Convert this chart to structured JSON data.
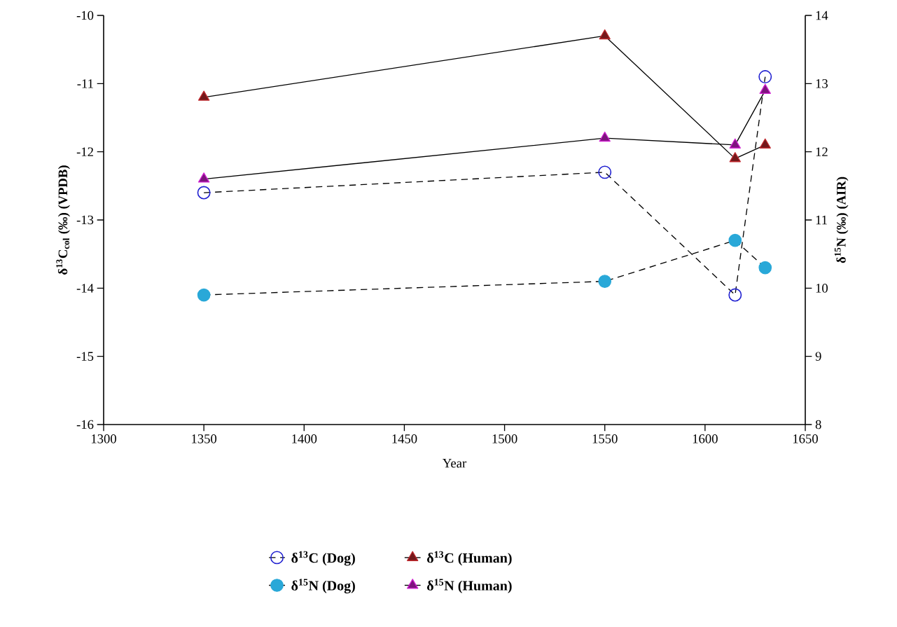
{
  "chart_data": {
    "type": "line",
    "xlabel": "Year",
    "ylabel": "δ$^{13}$C$_{col}$ (‰) (VPDB)",
    "y2label": "δ$^{15}$N (‰) (AIR)",
    "x": [
      1350,
      1550,
      1615,
      1630
    ],
    "xlim": [
      1300,
      1650
    ],
    "xticks": [
      1300,
      1350,
      1400,
      1450,
      1500,
      1550,
      1600,
      1650
    ],
    "ylim": [
      -16,
      -10
    ],
    "yticks": [
      -16,
      -15,
      -14,
      -13,
      -12,
      -11,
      -10
    ],
    "y2lim": [
      8,
      14
    ],
    "y2ticks": [
      8,
      9,
      10,
      11,
      12,
      13,
      14
    ],
    "legend": "bottom",
    "series": [
      {
        "name": "δ$^{13}$C (Dog)",
        "color": "#1f1fd0",
        "marker": "circle",
        "line_style": "dashed",
        "values": [
          -12.6,
          -12.3,
          -14.1,
          -10.9
        ]
      },
      {
        "name": "δ$^{15}$N (Dog)",
        "color": "#29a8d8",
        "marker": "circle",
        "line_style": "dashed",
        "axis": "y2",
        "values": [
          9.9,
          10.1,
          10.7,
          10.3
        ]
      },
      {
        "name": "δ$^{13}$C (Human)",
        "color": "#c0282d",
        "marker": "triangle",
        "line_style": "solid",
        "values": [
          -11.2,
          -10.3,
          -12.1,
          -11.9
        ]
      },
      {
        "name": "δ$^{15}$N (Human)",
        "color": "#d020d0",
        "marker": "triangle",
        "line_style": "solid",
        "axis": "y2",
        "values": [
          11.6,
          12.2,
          12.1,
          12.9
        ]
      }
    ]
  }
}
